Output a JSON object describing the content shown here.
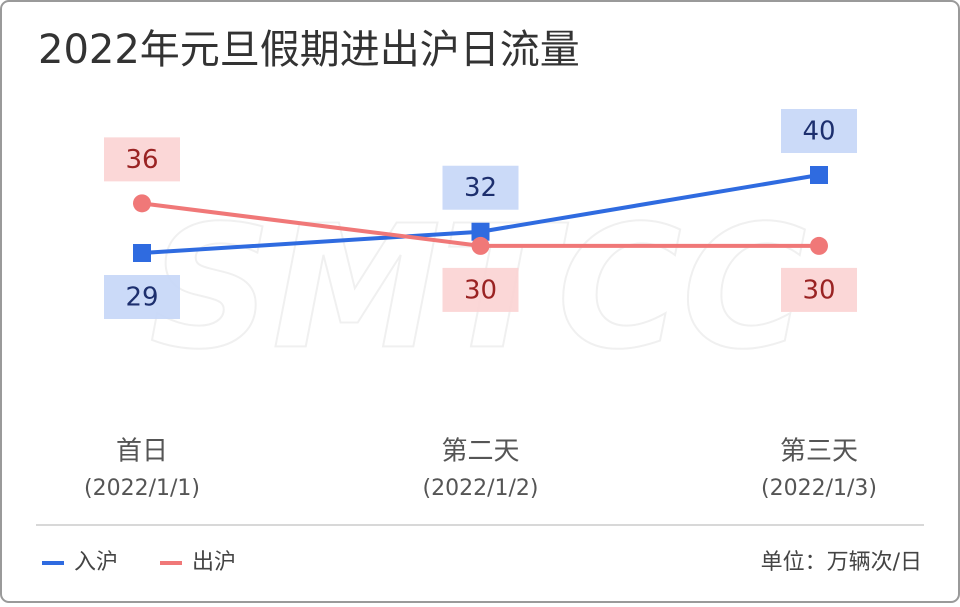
{
  "chart_data": {
    "type": "line",
    "title": "2022年元旦假期进出沪日流量",
    "watermark": "SMTCC",
    "categories": [
      "首日",
      "第二天",
      "第三天"
    ],
    "category_dates": [
      "(2022/1/1)",
      "(2022/1/2)",
      "(2022/1/3)"
    ],
    "series": [
      {
        "name": "入沪",
        "color": "#2f6be0",
        "marker": "square",
        "label_color": "#1d2f6e",
        "label_bg": "#c5d6f7",
        "values": [
          29,
          32,
          40
        ]
      },
      {
        "name": "出沪",
        "color": "#f07878",
        "marker": "circle",
        "label_color": "#9a2323",
        "label_bg": "#fbd3d3",
        "values": [
          36,
          30,
          30
        ]
      }
    ],
    "unit": "单位：万辆次/日",
    "legend": "bottom-left"
  }
}
